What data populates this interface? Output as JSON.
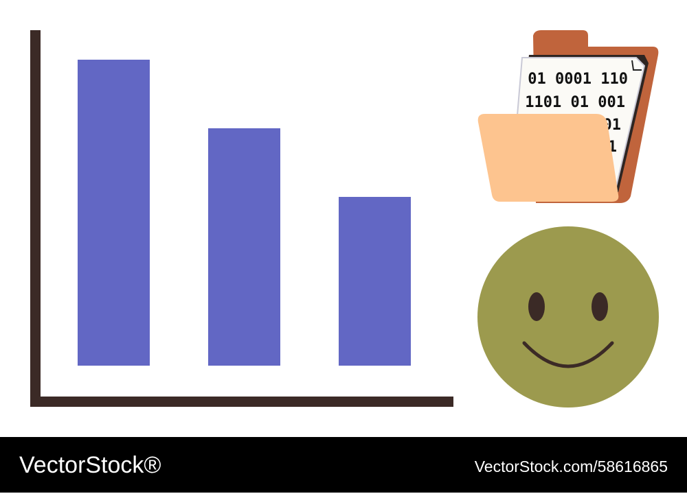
{
  "chart_data": {
    "type": "bar",
    "values": [
      4.46,
      3.46,
      2.46
    ],
    "color": "#6267c4",
    "ylim": [
      0,
      5
    ]
  },
  "folder": {
    "lines": [
      "01 0001 110",
      "1101 01 001",
      "01",
      "1"
    ]
  },
  "footer": {
    "brand": "VectorStock®",
    "url": "VectorStock.com/58616865"
  }
}
